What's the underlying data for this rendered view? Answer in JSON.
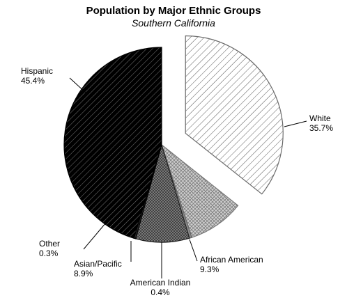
{
  "chart_data": {
    "type": "pie",
    "title": "Population by Major Ethnic Groups",
    "subtitle": "Southern California",
    "slices": [
      {
        "name": "White",
        "value": 35.7,
        "value_label": "35.7%",
        "pattern": "diag-light",
        "exploded": true
      },
      {
        "name": "African American",
        "value": 9.3,
        "value_label": "9.3%",
        "pattern": "crosshatch-light"
      },
      {
        "name": "American Indian",
        "value": 0.4,
        "value_label": "0.4%",
        "pattern": "solid-gray"
      },
      {
        "name": "Asian/Pacific",
        "value": 8.9,
        "value_label": "8.9%",
        "pattern": "crosshatch-dark"
      },
      {
        "name": "Other",
        "value": 0.3,
        "value_label": "0.3%",
        "pattern": "solid-dark"
      },
      {
        "name": "Hispanic",
        "value": 45.4,
        "value_label": "45.4%",
        "pattern": "diag-dark"
      }
    ],
    "start_angle_deg": 0,
    "direction": "clockwise",
    "legend": "none",
    "labels": "outside-with-leader-lines"
  }
}
